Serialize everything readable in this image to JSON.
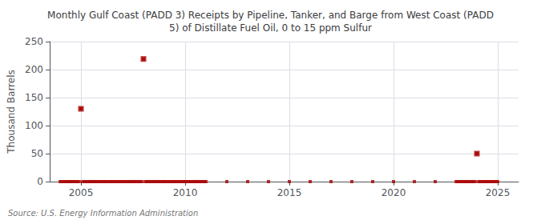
{
  "chart_data": {
    "type": "scatter",
    "title": "Monthly Gulf Coast (PADD 3) Receipts by Pipeline, Tanker, and Barge from West Coast (PADD\n5) of Distillate Fuel Oil, 0 to 15 ppm Sulfur",
    "ylabel": "Thousand Barrels",
    "annotation": "Source: U.S. Energy Information Administration",
    "xlim": [
      2003.5,
      2026
    ],
    "ylim": [
      0,
      250
    ],
    "xticks": [
      2005,
      2010,
      2015,
      2020,
      2025
    ],
    "yticks": [
      0,
      50,
      100,
      150,
      200,
      250
    ],
    "grid": true,
    "series": [
      {
        "color": "#aa0000",
        "marker": "square",
        "x": [
          2004.0,
          2004.083,
          2004.167,
          2004.25,
          2004.333,
          2004.417,
          2004.5,
          2004.583,
          2004.667,
          2004.75,
          2004.833,
          2004.917,
          2005.0,
          2005.083,
          2005.167,
          2005.25,
          2005.333,
          2005.417,
          2005.5,
          2005.583,
          2005.667,
          2005.75,
          2005.833,
          2005.917,
          2006.0,
          2006.083,
          2006.167,
          2006.25,
          2006.333,
          2006.417,
          2006.5,
          2006.583,
          2006.667,
          2006.75,
          2006.833,
          2006.917,
          2007.0,
          2007.083,
          2007.167,
          2007.25,
          2007.333,
          2007.417,
          2007.5,
          2007.583,
          2007.667,
          2007.75,
          2007.833,
          2007.917,
          2008.0,
          2008.083,
          2008.167,
          2008.25,
          2008.333,
          2008.417,
          2008.5,
          2008.583,
          2008.667,
          2008.75,
          2008.833,
          2008.917,
          2009.0,
          2009.083,
          2009.167,
          2009.25,
          2009.333,
          2009.417,
          2009.5,
          2009.583,
          2009.667,
          2009.75,
          2009.833,
          2009.917,
          2010.0,
          2010.083,
          2010.167,
          2010.25,
          2010.333,
          2010.417,
          2010.5,
          2010.583,
          2010.667,
          2010.75,
          2010.833,
          2010.917,
          2011.0,
          2012.0,
          2013.0,
          2014.0,
          2015.0,
          2016.0,
          2017.0,
          2018.0,
          2019.0,
          2020.0,
          2021.0,
          2022.0,
          2023.0,
          2023.083,
          2023.167,
          2023.25,
          2023.333,
          2023.417,
          2023.5,
          2023.583,
          2023.667,
          2023.75,
          2023.833,
          2023.917,
          2024.0,
          2024.083,
          2024.167,
          2024.25,
          2024.333,
          2024.417,
          2024.5,
          2024.583,
          2024.667,
          2024.75,
          2024.833,
          2024.917,
          2025.0
        ],
        "values": [
          0,
          0,
          0,
          0,
          0,
          0,
          0,
          0,
          0,
          0,
          0,
          0,
          130,
          0,
          0,
          0,
          0,
          0,
          0,
          0,
          0,
          0,
          0,
          0,
          0,
          0,
          0,
          0,
          0,
          0,
          0,
          0,
          0,
          0,
          0,
          0,
          0,
          0,
          0,
          0,
          0,
          0,
          0,
          0,
          0,
          0,
          0,
          0,
          219,
          0,
          0,
          0,
          0,
          0,
          0,
          0,
          0,
          0,
          0,
          0,
          0,
          0,
          0,
          0,
          0,
          0,
          0,
          0,
          0,
          0,
          0,
          0,
          0,
          0,
          0,
          0,
          0,
          0,
          0,
          0,
          0,
          0,
          0,
          0,
          0,
          0,
          0,
          0,
          0,
          0,
          0,
          0,
          0,
          0,
          0,
          0,
          0,
          0,
          0,
          0,
          0,
          0,
          0,
          0,
          0,
          0,
          0,
          0,
          50,
          0,
          0,
          0,
          0,
          0,
          0,
          0,
          0,
          0,
          0,
          0,
          0
        ]
      },
      {
        "color": "#aa0000",
        "marker": "square",
        "x": [
          2005.0,
          2008.0,
          2024.0
        ],
        "values": [
          130,
          219,
          50
        ]
      }
    ]
  }
}
